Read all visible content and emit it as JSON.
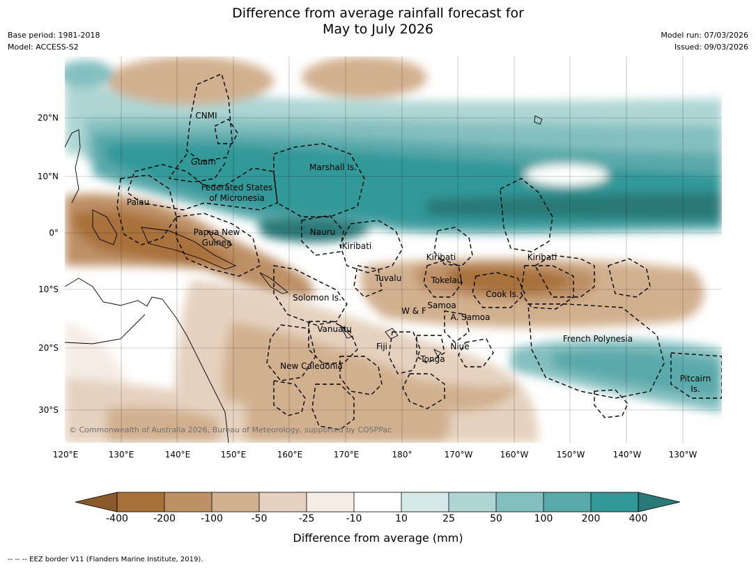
{
  "title_line1": "Difference from average rainfall forecast for",
  "title_line2": "May to July 2026",
  "base_period": "Base period: 1981-2018",
  "model": "Model: ACCESS-S2",
  "model_run": "Model run: 07/03/2026",
  "issued": "Issued: 09/03/2026",
  "lat_labels": [
    "20°N",
    "10°N",
    "0°",
    "10°S",
    "20°S",
    "30°S"
  ],
  "lon_labels": [
    "120°E",
    "130°E",
    "140°E",
    "150°E",
    "160°E",
    "170°E",
    "180°",
    "170°W",
    "160°W",
    "150°W",
    "140°W",
    "130°W"
  ],
  "regions": {
    "cnmi": "CNMI",
    "guam": "Guam",
    "marshall": "Marshall Is.",
    "fsm_1": "Federated States",
    "fsm_2": "of Micronesia",
    "palau": "Palau",
    "png_1": "Papua New",
    "png_2": "Guinea",
    "nauru": "Nauru",
    "kiribati_w": "Kiribati",
    "kiribati_c": "Kiribati",
    "kiribati_e": "Kiribati",
    "tuvalu": "Tuvalu",
    "tokelau": "Tokelau",
    "cook": "Cook Is.",
    "solomon": "Solomon Is.",
    "samoa": "Samoa",
    "wf": "W & F",
    "asamoa": "A. Samoa",
    "vanuatu": "Vanuatu",
    "fiji": "Fiji",
    "niue": "Niue",
    "tonga": "Tonga",
    "newcal": "New Caledonia",
    "frpoly": "French Polynesia",
    "pitcairn_1": "Pitcairn",
    "pitcairn_2": "Is."
  },
  "copyright": "© Commonwealth of Australia 2026, Bureau of Meteorology, supported by COSPPac",
  "legend": {
    "colors": [
      "#8b5a2b",
      "#a9713a",
      "#bd9066",
      "#d1b08f",
      "#e5d1bf",
      "#f4ece5",
      "#ffffff",
      "#d5e9e8",
      "#aed5d4",
      "#84bfc0",
      "#5aa9aa",
      "#339898",
      "#2a7878"
    ],
    "ticks": [
      "-400",
      "-200",
      "-100",
      "-50",
      "-25",
      "-10",
      "10",
      "25",
      "50",
      "100",
      "200",
      "400"
    ],
    "label": "Difference from average (mm)"
  },
  "footer": "--  --  -- EEZ border V11 (Flanders Marine Institute, 2019)."
}
